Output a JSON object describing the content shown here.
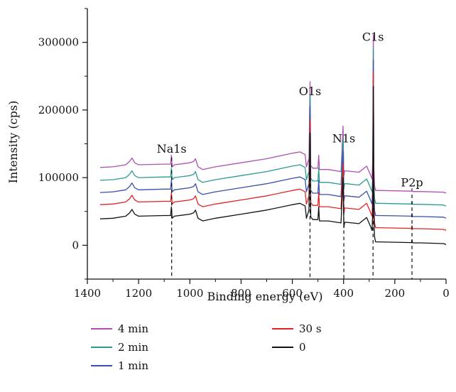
{
  "chart_data": {
    "type": "line",
    "xlabel": "Binding energy (eV)",
    "ylabel": "Intensity (cps)",
    "xlim": [
      1400,
      0
    ],
    "ylim": [
      -50000,
      350000
    ],
    "x_ticks": [
      1400,
      1200,
      1000,
      800,
      600,
      400,
      200,
      0
    ],
    "y_ticks": [
      0,
      100000,
      200000,
      300000
    ],
    "x_tick_labels": [
      "1400",
      "1200",
      "1000",
      "800",
      "600",
      "400",
      "200",
      "0"
    ],
    "y_tick_labels": [
      "0",
      "100000",
      "200000",
      "300000"
    ],
    "annotations": [
      {
        "text": "Na1s",
        "x": 1071,
        "label_y": 137000,
        "line_top": 130000
      },
      {
        "text": "O1s",
        "x": 531,
        "label_y": 222000,
        "line_top": 100000
      },
      {
        "text": "N1s",
        "x": 399,
        "label_y": 152000,
        "line_top": 60000
      },
      {
        "text": "C1s",
        "x": 285,
        "label_y": 302000,
        "line_top": 55000
      },
      {
        "text": "P2p",
        "x": 133,
        "label_y": 87000,
        "line_top": 75000
      }
    ],
    "annotation_line_bottom": -50000,
    "legend": {
      "placement": "bottom",
      "entries": [
        {
          "name": "4 min",
          "color": "#b04fb0"
        },
        {
          "name": "2 min",
          "color": "#2a9d8f"
        },
        {
          "name": "1 min",
          "color": "#3a4fb0"
        },
        {
          "name": "30 s",
          "color": "#e02424"
        },
        {
          "name": "0",
          "color": "#111111"
        }
      ]
    },
    "series": [
      {
        "name": "4 min",
        "color": "#b04fb0",
        "offset": 76000
      },
      {
        "name": "2 min",
        "color": "#2a9d8f",
        "offset": 57000
      },
      {
        "name": "1 min",
        "color": "#3a4fb0",
        "offset": 39000
      },
      {
        "name": "30 s",
        "color": "#e02424",
        "offset": 21000
      },
      {
        "name": "0",
        "color": "#111111",
        "offset": 0
      }
    ],
    "base_profile": {
      "x": [
        1350,
        1300,
        1250,
        1235,
        1226,
        1215,
        1200,
        1100,
        1075,
        1072,
        1069,
        1060,
        1000,
        985,
        978,
        968,
        950,
        900,
        800,
        700,
        600,
        570,
        550,
        545,
        535,
        531,
        528,
        520,
        500,
        497,
        494,
        460,
        410,
        402,
        399,
        396,
        390,
        340,
        310,
        295,
        289,
        286,
        284,
        282,
        279,
        275,
        268,
        200,
        135,
        133,
        131,
        100,
        10,
        0
      ],
      "y": [
        39000,
        40000,
        43000,
        48000,
        53000,
        46000,
        43000,
        44000,
        44000,
        57000,
        40000,
        43000,
        46000,
        48000,
        52000,
        40000,
        36000,
        40000,
        46000,
        52000,
        60000,
        62000,
        58000,
        40000,
        52000,
        166000,
        42000,
        38000,
        38000,
        57000,
        36000,
        36000,
        33000,
        100000,
        26000,
        34000,
        34000,
        32000,
        41000,
        28000,
        22000,
        50000,
        235000,
        40000,
        12000,
        5000,
        5000,
        4500,
        4000,
        8000,
        3500,
        3500,
        2500,
        1000
      ]
    }
  }
}
